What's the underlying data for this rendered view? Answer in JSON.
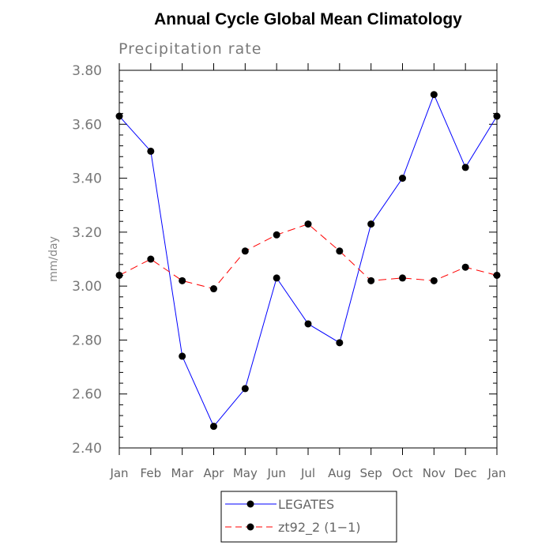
{
  "chart_data": {
    "type": "line",
    "title": "Annual Cycle Global Mean Climatology",
    "subtitle": "Precipitation rate",
    "xlabel": "",
    "ylabel": "mm/day",
    "ylim": [
      2.4,
      3.8
    ],
    "yticks": [
      "2.40",
      "2.60",
      "2.80",
      "3.00",
      "3.20",
      "3.40",
      "3.60",
      "3.80"
    ],
    "ytick_values": [
      2.4,
      2.6,
      2.8,
      3.0,
      3.2,
      3.4,
      3.6,
      3.8
    ],
    "categories": [
      "Jan",
      "Feb",
      "Mar",
      "Apr",
      "May",
      "Jun",
      "Jul",
      "Aug",
      "Sep",
      "Oct",
      "Nov",
      "Dec",
      "Jan"
    ],
    "series": [
      {
        "name": "LEGATES",
        "color": "#0000ff",
        "dash": "solid",
        "marker": "filled-circle",
        "values": [
          3.63,
          3.5,
          2.74,
          2.48,
          2.62,
          3.03,
          2.86,
          2.79,
          3.23,
          3.4,
          3.71,
          3.44,
          3.63
        ]
      },
      {
        "name": "zt92_2 (1−1)",
        "color": "#ff0000",
        "dash": "dashed",
        "marker": "filled-circle",
        "values": [
          3.04,
          3.1,
          3.02,
          2.99,
          3.13,
          3.19,
          3.23,
          3.13,
          3.02,
          3.03,
          3.02,
          3.07,
          3.04
        ]
      }
    ],
    "legend": {
      "placement": "bottom-center"
    }
  }
}
